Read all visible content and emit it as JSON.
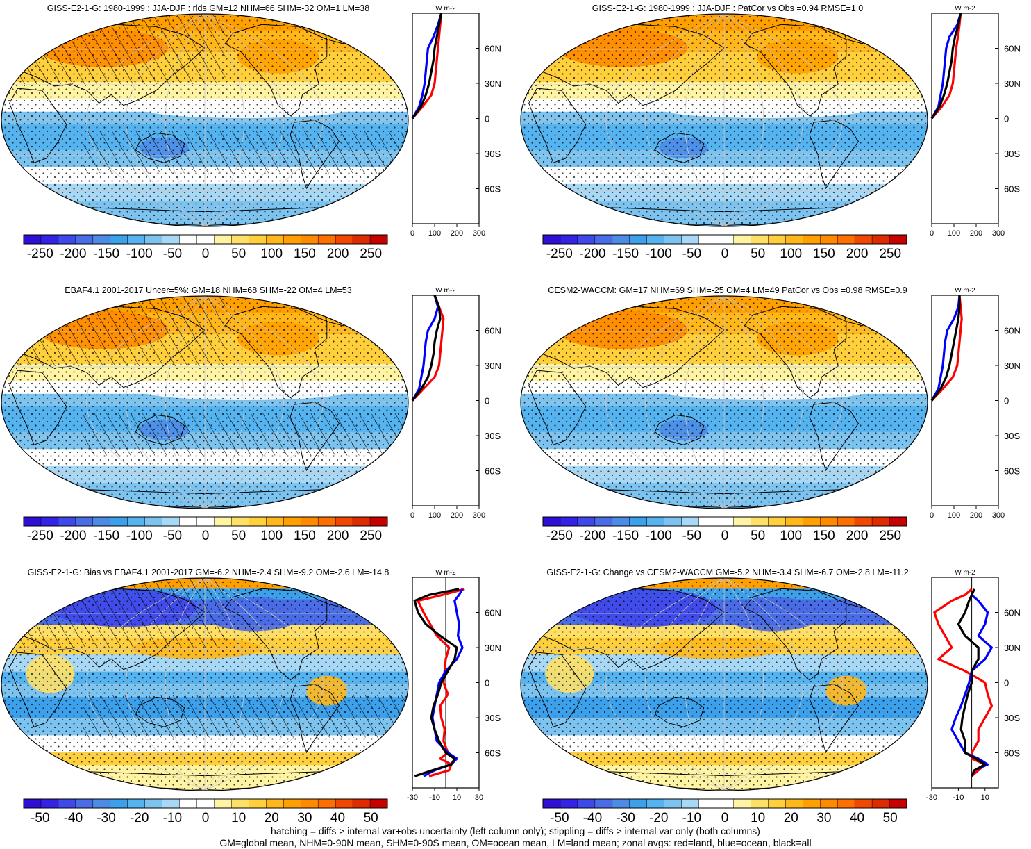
{
  "footnote": {
    "line1": "hatching = diffs > internal var+obs uncertainty (left column only); stippling = diffs > internal var only (both columns)",
    "line2": "GM=global mean, NHM=0-90N mean, SHM=0-90S mean, OM=ocean mean, LM=land mean; zonal avgs: red=land, blue=ocean, black=all"
  },
  "colors": {
    "land": "#ff0000",
    "ocean": "#0000ff",
    "all": "#000000",
    "ocean_fill": "#ffffff",
    "land_outline": "#000000"
  },
  "chart_data": [
    {
      "type": "heatmap",
      "title": "GISS-E2-1-G: 1980-1999 : JJA-DJF : rlds GM=12 NHM=66 SHM=-32 OM=1 LM=38",
      "colorbar": {
        "ticks": [
          "-250",
          "-200",
          "-150",
          "-100",
          "-50",
          "0",
          "50",
          "100",
          "150",
          "200",
          "250"
        ],
        "range": [
          -275,
          275
        ],
        "colors": [
          "#2d0fd6",
          "#3422e6",
          "#3f48ea",
          "#4a6ce6",
          "#4d8ce6",
          "#3da0ea",
          "#55b3f0",
          "#7cc3f0",
          "#a7d8f5",
          "#ffffff",
          "#ffffff",
          "#fff4a3",
          "#ffe066",
          "#ffcf3c",
          "#ffb71a",
          "#ffa000",
          "#ff8a00",
          "#ff6f00",
          "#f04800",
          "#e02a00",
          "#c80000"
        ]
      },
      "zonal": {
        "units": "W m-2",
        "xticks": [
          "0",
          "100",
          "200",
          "300"
        ],
        "xlim": [
          0,
          300
        ],
        "yticks": [
          "60N",
          "30N",
          "0",
          "30S",
          "60S"
        ],
        "ylim": [
          -90,
          90
        ],
        "lat": [
          -90,
          -60,
          -30,
          0,
          10,
          20,
          30,
          40,
          50,
          60,
          70,
          80,
          90
        ],
        "land": [
          null,
          null,
          null,
          0,
          45,
          85,
          100,
          105,
          110,
          115,
          120,
          125,
          130
        ],
        "ocean": [
          null,
          null,
          null,
          0,
          30,
          45,
          55,
          60,
          65,
          70,
          95,
          115,
          130
        ],
        "all": [
          null,
          null,
          null,
          0,
          38,
          60,
          75,
          85,
          95,
          100,
          110,
          120,
          130
        ]
      }
    },
    {
      "type": "heatmap",
      "title": "GISS-E2-1-G: 1980-1999 : JJA-DJF : PatCor vs Obs =0.94 RMSE=1.0",
      "colorbar": {
        "ticks": [
          "-250",
          "-200",
          "-150",
          "-100",
          "-50",
          "0",
          "50",
          "100",
          "150",
          "200",
          "250"
        ],
        "range": [
          -275,
          275
        ],
        "colors": [
          "#2d0fd6",
          "#3422e6",
          "#3f48ea",
          "#4a6ce6",
          "#4d8ce6",
          "#3da0ea",
          "#55b3f0",
          "#7cc3f0",
          "#a7d8f5",
          "#ffffff",
          "#ffffff",
          "#fff4a3",
          "#ffe066",
          "#ffcf3c",
          "#ffb71a",
          "#ffa000",
          "#ff8a00",
          "#ff6f00",
          "#f04800",
          "#e02a00",
          "#c80000"
        ]
      },
      "zonal": {
        "units": "W m-2",
        "xticks": [
          "0",
          "100",
          "200",
          "300"
        ],
        "xlim": [
          0,
          300
        ],
        "yticks": [
          "60N",
          "30N",
          "0",
          "30S",
          "60S"
        ],
        "ylim": [
          -90,
          90
        ],
        "lat": [
          -90,
          -60,
          -30,
          0,
          10,
          20,
          30,
          40,
          50,
          60,
          70,
          80,
          90
        ],
        "land": [
          null,
          null,
          null,
          0,
          45,
          80,
          95,
          100,
          105,
          110,
          118,
          125,
          130
        ],
        "ocean": [
          null,
          null,
          null,
          0,
          30,
          40,
          50,
          55,
          60,
          65,
          80,
          115,
          130
        ],
        "all": [
          null,
          null,
          null,
          0,
          35,
          55,
          70,
          80,
          90,
          95,
          105,
          120,
          130
        ]
      }
    },
    {
      "type": "heatmap",
      "title": "EBAF4.1 2001-2017 Uncer=5%: GM=18 NHM=68 SHM=-22 OM=4 LM=53",
      "colorbar": {
        "ticks": [
          "-250",
          "-200",
          "-150",
          "-100",
          "-50",
          "0",
          "50",
          "100",
          "150",
          "200",
          "250"
        ],
        "range": [
          -275,
          275
        ],
        "colors": [
          "#2d0fd6",
          "#3422e6",
          "#3f48ea",
          "#4a6ce6",
          "#4d8ce6",
          "#3da0ea",
          "#55b3f0",
          "#7cc3f0",
          "#a7d8f5",
          "#ffffff",
          "#ffffff",
          "#fff4a3",
          "#ffe066",
          "#ffcf3c",
          "#ffb71a",
          "#ffa000",
          "#ff8a00",
          "#ff6f00",
          "#f04800",
          "#e02a00",
          "#c80000"
        ]
      },
      "zonal": {
        "units": "W m-2",
        "xticks": [
          "0",
          "100",
          "200",
          "300"
        ],
        "xlim": [
          0,
          300
        ],
        "yticks": [
          "60N",
          "30N",
          "0",
          "30S",
          "60S"
        ],
        "ylim": [
          -90,
          90
        ],
        "lat": [
          -90,
          -60,
          -30,
          0,
          10,
          20,
          30,
          40,
          50,
          60,
          70,
          80,
          90
        ],
        "land": [
          null,
          null,
          null,
          0,
          50,
          100,
          120,
          125,
          130,
          135,
          140,
          120,
          100
        ],
        "ocean": [
          null,
          null,
          null,
          0,
          30,
          40,
          50,
          55,
          60,
          70,
          100,
          115,
          100
        ],
        "all": [
          null,
          null,
          null,
          0,
          40,
          70,
          85,
          95,
          100,
          110,
          125,
          120,
          100
        ]
      }
    },
    {
      "type": "heatmap",
      "title": "CESM2-WACCM: GM=17 NHM=69 SHM=-25 OM=4 LM=49 PatCor vs Obs =0.98 RMSE=0.9",
      "colorbar": {
        "ticks": [
          "-250",
          "-200",
          "-150",
          "-100",
          "-50",
          "0",
          "50",
          "100",
          "150",
          "200",
          "250"
        ],
        "range": [
          -275,
          275
        ],
        "colors": [
          "#2d0fd6",
          "#3422e6",
          "#3f48ea",
          "#4a6ce6",
          "#4d8ce6",
          "#3da0ea",
          "#55b3f0",
          "#7cc3f0",
          "#a7d8f5",
          "#ffffff",
          "#ffffff",
          "#fff4a3",
          "#ffe066",
          "#ffcf3c",
          "#ffb71a",
          "#ffa000",
          "#ff8a00",
          "#ff6f00",
          "#f04800",
          "#e02a00",
          "#c80000"
        ]
      },
      "zonal": {
        "units": "W m-2",
        "xticks": [
          "0",
          "100",
          "200",
          "300"
        ],
        "xlim": [
          0,
          300
        ],
        "yticks": [
          "60N",
          "30N",
          "0",
          "30S",
          "60S"
        ],
        "ylim": [
          -90,
          90
        ],
        "lat": [
          -90,
          -60,
          -30,
          0,
          10,
          20,
          30,
          40,
          50,
          60,
          70,
          80,
          90
        ],
        "land": [
          null,
          null,
          null,
          0,
          50,
          95,
          115,
          120,
          125,
          130,
          135,
          130,
          125
        ],
        "ocean": [
          null,
          null,
          null,
          0,
          30,
          40,
          50,
          55,
          60,
          70,
          100,
          120,
          125
        ],
        "all": [
          null,
          null,
          null,
          0,
          40,
          65,
          80,
          90,
          100,
          110,
          120,
          125,
          125
        ]
      }
    },
    {
      "type": "heatmap",
      "title": "GISS-E2-1-G: Bias vs EBAF4.1 2001-2017 GM=-6.2 NHM=-2.4 SHM=-9.2 OM=-2.6 LM=-14.8",
      "colorbar": {
        "ticks": [
          "-50",
          "-40",
          "-30",
          "-20",
          "-10",
          "0",
          "10",
          "20",
          "30",
          "40",
          "50"
        ],
        "range": [
          -55,
          55
        ],
        "colors": [
          "#2d0fd6",
          "#3422e6",
          "#3f48ea",
          "#4a6ce6",
          "#4d8ce6",
          "#3da0ea",
          "#55b3f0",
          "#7cc3f0",
          "#a7d8f5",
          "#ffffff",
          "#ffffff",
          "#fff4a3",
          "#ffe066",
          "#ffcf3c",
          "#ffb71a",
          "#ffa000",
          "#ff8a00",
          "#ff6f00",
          "#f04800",
          "#e02a00",
          "#c80000"
        ]
      },
      "zonal": {
        "units": "W m-2",
        "xticks": [
          "-30",
          "-10",
          "10",
          "30"
        ],
        "xlim": [
          -30,
          30
        ],
        "yticks": [
          "60N",
          "30N",
          "0",
          "30S",
          "60S"
        ],
        "ylim": [
          -90,
          90
        ],
        "ref": 0,
        "lat": [
          -80,
          -75,
          -70,
          -65,
          -60,
          -50,
          -40,
          -30,
          -20,
          -10,
          0,
          10,
          20,
          30,
          40,
          50,
          60,
          70,
          75,
          80
        ],
        "land": [
          -15,
          3,
          5,
          -5,
          2,
          -2,
          -1,
          -4,
          -5,
          2,
          -2,
          -1,
          0,
          3,
          -8,
          -14,
          -20,
          -25,
          -3,
          17
        ],
        "ocean": [
          -20,
          -10,
          5,
          10,
          2,
          -8,
          -10,
          -12,
          -10,
          -8,
          -6,
          0,
          10,
          15,
          11,
          12,
          10,
          8,
          12,
          15
        ],
        "all": [
          -28,
          -12,
          5,
          8,
          0,
          -6,
          -10,
          -13,
          -11,
          -7,
          -4,
          2,
          8,
          10,
          -5,
          -18,
          -25,
          -28,
          -15,
          12
        ]
      }
    },
    {
      "type": "heatmap",
      "title": "GISS-E2-1-G: Change vs CESM2-WACCM GM=-5.2 NHM=-3.4 SHM=-6.7 OM=-2.8 LM=-11.2",
      "colorbar": {
        "ticks": [
          "-50",
          "-40",
          "-30",
          "-20",
          "-10",
          "0",
          "10",
          "20",
          "30",
          "40",
          "50"
        ],
        "range": [
          -55,
          55
        ],
        "colors": [
          "#2d0fd6",
          "#3422e6",
          "#3f48ea",
          "#4a6ce6",
          "#4d8ce6",
          "#3da0ea",
          "#55b3f0",
          "#7cc3f0",
          "#a7d8f5",
          "#ffffff",
          "#ffffff",
          "#fff4a3",
          "#ffe066",
          "#ffcf3c",
          "#ffb71a",
          "#ffa000",
          "#ff8a00",
          "#ff6f00",
          "#f04800",
          "#e02a00",
          "#c80000"
        ]
      },
      "zonal": {
        "units": "W m-2",
        "xticks": [
          "-30",
          "-10",
          "10"
        ],
        "xlim": [
          -30,
          20
        ],
        "yticks": [
          "60N",
          "30N",
          "0",
          "30S",
          "60S"
        ],
        "ylim": [
          -90,
          90
        ],
        "ref": 0,
        "lat": [
          -80,
          -75,
          -70,
          -65,
          -60,
          -50,
          -40,
          -30,
          -20,
          -10,
          0,
          10,
          20,
          30,
          40,
          50,
          60,
          70,
          75,
          80
        ],
        "land": [
          0,
          5,
          10,
          0,
          0,
          5,
          5,
          10,
          15,
          12,
          10,
          -5,
          -25,
          -15,
          -20,
          -25,
          -28,
          -15,
          -5,
          0
        ],
        "ocean": [
          0,
          2,
          12,
          5,
          -5,
          -10,
          -15,
          -12,
          -8,
          -5,
          -2,
          0,
          10,
          15,
          5,
          10,
          12,
          5,
          0,
          2
        ],
        "all": [
          0,
          2,
          10,
          3,
          -5,
          -5,
          -8,
          -7,
          -5,
          -3,
          0,
          0,
          5,
          5,
          -5,
          -10,
          -5,
          -2,
          0,
          2
        ]
      }
    }
  ]
}
